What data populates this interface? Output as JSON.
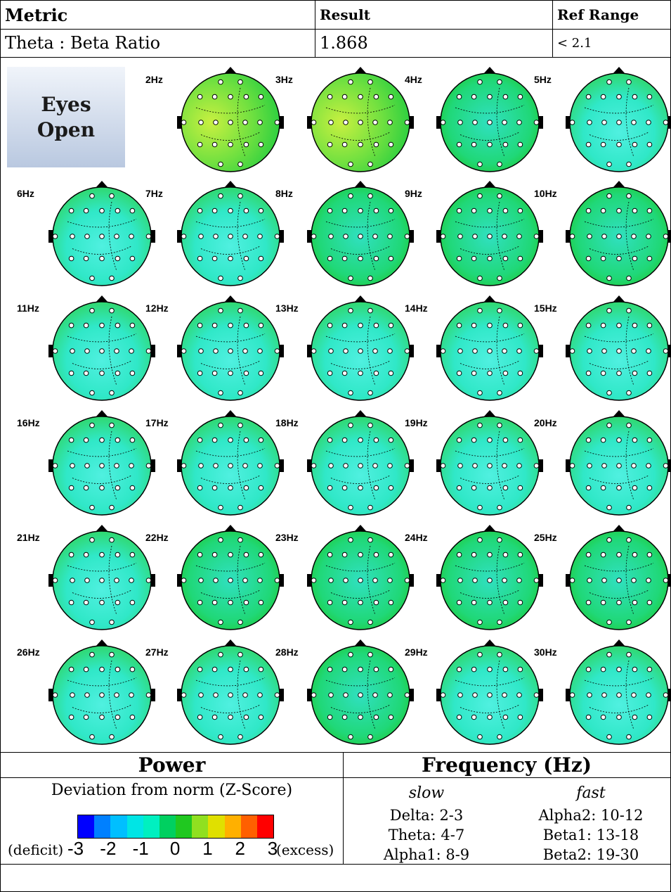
{
  "table": {
    "headers": {
      "metric": "Metric",
      "result": "Result",
      "ref": "Ref Range"
    },
    "row": {
      "metric": "Theta : Beta Ratio",
      "result": "1.868",
      "ref": "< 2.1"
    }
  },
  "condition_label": [
    "Eyes",
    "Open"
  ],
  "maps": [
    "2Hz",
    "3Hz",
    "4Hz",
    "5Hz",
    "6Hz",
    "7Hz",
    "8Hz",
    "9Hz",
    "10Hz",
    "11Hz",
    "12Hz",
    "13Hz",
    "14Hz",
    "15Hz",
    "16Hz",
    "17Hz",
    "18Hz",
    "19Hz",
    "20Hz",
    "21Hz",
    "22Hz",
    "23Hz",
    "24Hz",
    "25Hz",
    "26Hz",
    "27Hz",
    "28Hz",
    "29Hz",
    "30Hz"
  ],
  "legend": {
    "power_title": "Power",
    "power_subtitle": "Deviation from norm (Z-Score)",
    "colors": [
      "#0000ff",
      "#0080ff",
      "#00bfff",
      "#00e5e5",
      "#00f0c0",
      "#00d060",
      "#20c820",
      "#90e020",
      "#e0e000",
      "#ffb000",
      "#ff6000",
      "#ff0000"
    ],
    "scale_ticks": [
      "-3",
      "-2",
      "-1",
      "0",
      "1",
      "2",
      "3"
    ],
    "deficit_label": "(deficit)",
    "excess_label": "(excess)",
    "freq_title": "Frequency (Hz)",
    "slow_label": "slow",
    "fast_label": "fast",
    "slow_bands": [
      {
        "name": "Delta:",
        "range": "2-3"
      },
      {
        "name": "Theta:",
        "range": "4-7"
      },
      {
        "name": "Alpha1:",
        "range": "8-9"
      }
    ],
    "fast_bands": [
      {
        "name": "Alpha2:",
        "range": "10-12"
      },
      {
        "name": "Beta1:",
        "range": "13-18"
      },
      {
        "name": "Beta2:",
        "range": "19-30"
      }
    ]
  }
}
